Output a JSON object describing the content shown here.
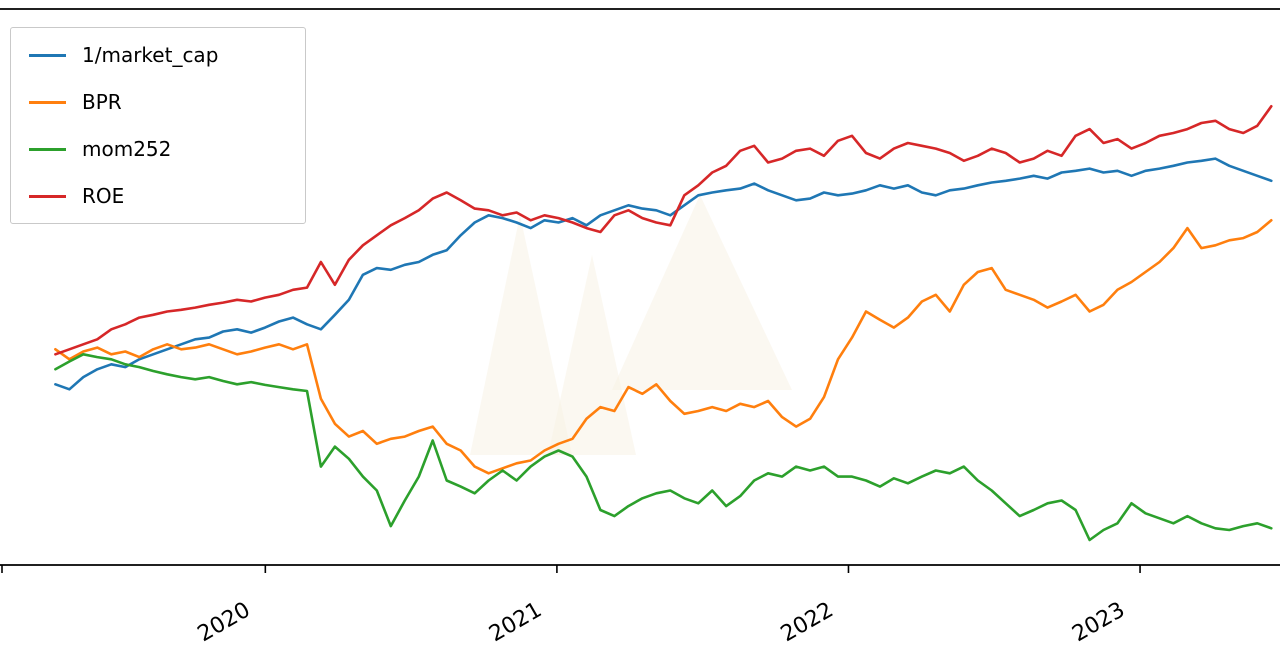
{
  "figure": {
    "background": "#ffffff",
    "watermark_color": "#f7f2e3",
    "axis_color": "#000000",
    "tick_label_color": "#000000"
  },
  "chart_data": {
    "type": "line",
    "title": "",
    "xlabel": "",
    "ylabel": "",
    "grid": false,
    "legend": {
      "position": "upper-left",
      "entries": [
        "1/market_cap",
        "BPR",
        "mom252",
        "ROE"
      ]
    },
    "x_axis": {
      "description": "time axis in decimal years, series sampled uniformly from start to end",
      "start": 2019.28,
      "end": 2023.45,
      "sampling": "uniform",
      "xlim": [
        2019.09,
        2023.48
      ],
      "ticks": [
        2020,
        2021,
        2022,
        2023
      ],
      "tick_labels": [
        "2020",
        "2021",
        "2022",
        "2023"
      ],
      "tick_label_rotation_deg": 30
    },
    "ylim": [
      0.63,
      1.63
    ],
    "series": [
      {
        "name": "1/market_cap",
        "color": "#1f77b4",
        "values": [
          0.955,
          0.946,
          0.968,
          0.982,
          0.991,
          0.986,
          1.0,
          1.009,
          1.018,
          1.027,
          1.036,
          1.039,
          1.05,
          1.054,
          1.048,
          1.057,
          1.068,
          1.075,
          1.063,
          1.054,
          1.08,
          1.107,
          1.152,
          1.164,
          1.161,
          1.17,
          1.175,
          1.188,
          1.196,
          1.223,
          1.246,
          1.259,
          1.254,
          1.246,
          1.236,
          1.25,
          1.246,
          1.254,
          1.241,
          1.259,
          1.268,
          1.277,
          1.271,
          1.268,
          1.259,
          1.277,
          1.295,
          1.3,
          1.304,
          1.307,
          1.316,
          1.304,
          1.295,
          1.286,
          1.289,
          1.3,
          1.295,
          1.298,
          1.304,
          1.313,
          1.307,
          1.313,
          1.3,
          1.295,
          1.304,
          1.307,
          1.313,
          1.318,
          1.321,
          1.325,
          1.33,
          1.325,
          1.336,
          1.339,
          1.343,
          1.336,
          1.339,
          1.33,
          1.339,
          1.343,
          1.348,
          1.354,
          1.357,
          1.361,
          1.348,
          1.339,
          1.33,
          1.321
        ]
      },
      {
        "name": "BPR",
        "color": "#ff7f0e",
        "values": [
          1.018,
          1.0,
          1.014,
          1.021,
          1.009,
          1.014,
          1.004,
          1.018,
          1.027,
          1.018,
          1.021,
          1.027,
          1.018,
          1.009,
          1.014,
          1.021,
          1.027,
          1.018,
          1.027,
          0.929,
          0.884,
          0.861,
          0.871,
          0.848,
          0.857,
          0.861,
          0.871,
          0.879,
          0.848,
          0.836,
          0.807,
          0.795,
          0.804,
          0.813,
          0.818,
          0.836,
          0.848,
          0.857,
          0.893,
          0.914,
          0.907,
          0.95,
          0.938,
          0.955,
          0.925,
          0.902,
          0.907,
          0.914,
          0.907,
          0.92,
          0.914,
          0.925,
          0.896,
          0.879,
          0.893,
          0.932,
          1.0,
          1.039,
          1.086,
          1.071,
          1.057,
          1.075,
          1.104,
          1.116,
          1.086,
          1.134,
          1.157,
          1.164,
          1.125,
          1.116,
          1.107,
          1.093,
          1.104,
          1.116,
          1.086,
          1.098,
          1.125,
          1.139,
          1.157,
          1.175,
          1.2,
          1.236,
          1.2,
          1.205,
          1.214,
          1.218,
          1.229,
          1.25
        ]
      },
      {
        "name": "mom252",
        "color": "#2ca02c",
        "values": [
          0.982,
          0.996,
          1.009,
          1.004,
          1.0,
          0.991,
          0.986,
          0.979,
          0.973,
          0.968,
          0.964,
          0.968,
          0.961,
          0.955,
          0.959,
          0.954,
          0.95,
          0.946,
          0.943,
          0.807,
          0.843,
          0.821,
          0.789,
          0.764,
          0.7,
          0.746,
          0.789,
          0.854,
          0.782,
          0.771,
          0.759,
          0.782,
          0.8,
          0.782,
          0.807,
          0.825,
          0.836,
          0.825,
          0.789,
          0.729,
          0.718,
          0.736,
          0.75,
          0.759,
          0.764,
          0.75,
          0.741,
          0.764,
          0.736,
          0.754,
          0.782,
          0.795,
          0.789,
          0.807,
          0.8,
          0.807,
          0.789,
          0.789,
          0.782,
          0.771,
          0.786,
          0.777,
          0.789,
          0.8,
          0.795,
          0.807,
          0.782,
          0.764,
          0.741,
          0.718,
          0.729,
          0.741,
          0.746,
          0.729,
          0.675,
          0.693,
          0.705,
          0.741,
          0.723,
          0.714,
          0.705,
          0.718,
          0.705,
          0.696,
          0.693,
          0.7,
          0.705,
          0.696
        ]
      },
      {
        "name": "ROE",
        "color": "#d62728",
        "values": [
          1.009,
          1.018,
          1.027,
          1.036,
          1.054,
          1.063,
          1.075,
          1.08,
          1.086,
          1.089,
          1.093,
          1.098,
          1.102,
          1.107,
          1.104,
          1.111,
          1.116,
          1.125,
          1.129,
          1.175,
          1.134,
          1.179,
          1.205,
          1.223,
          1.241,
          1.254,
          1.268,
          1.289,
          1.3,
          1.286,
          1.271,
          1.268,
          1.259,
          1.264,
          1.25,
          1.259,
          1.254,
          1.246,
          1.236,
          1.229,
          1.259,
          1.268,
          1.254,
          1.246,
          1.241,
          1.295,
          1.313,
          1.336,
          1.348,
          1.375,
          1.384,
          1.354,
          1.361,
          1.375,
          1.379,
          1.366,
          1.393,
          1.402,
          1.371,
          1.361,
          1.379,
          1.389,
          1.384,
          1.379,
          1.371,
          1.357,
          1.366,
          1.379,
          1.371,
          1.354,
          1.361,
          1.375,
          1.366,
          1.402,
          1.414,
          1.389,
          1.396,
          1.379,
          1.389,
          1.402,
          1.407,
          1.414,
          1.425,
          1.429,
          1.414,
          1.407,
          1.42,
          1.455
        ]
      }
    ]
  }
}
